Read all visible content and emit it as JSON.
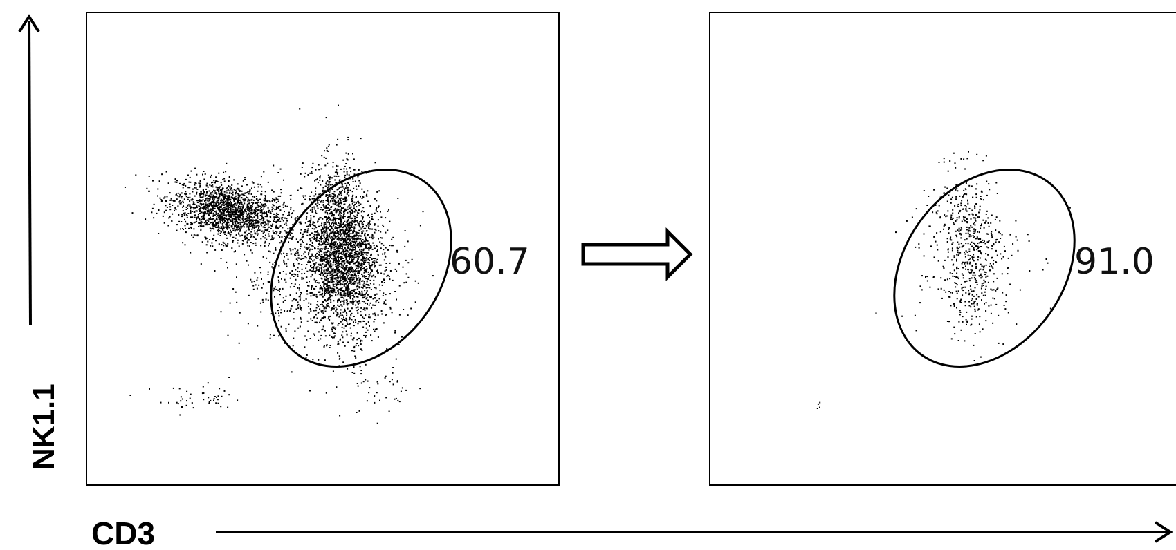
{
  "chart_data": [
    {
      "type": "scatter",
      "panel": "left",
      "xlabel": "CD3",
      "ylabel": "NK1.1",
      "gate": {
        "shape": "ellipse",
        "percentage": "60.7"
      },
      "clusters": [
        {
          "name": "",
          "cx": 0.3,
          "cy": 0.58,
          "sx": 0.06,
          "sy": 0.03,
          "rot": -12,
          "n": 1700
        },
        {
          "name": "",
          "cx": 0.54,
          "cy": 0.5,
          "sx": 0.035,
          "sy": 0.085,
          "rot": 4,
          "n": 2200
        },
        {
          "name": "",
          "cx": 0.5,
          "cy": 0.45,
          "sx": 0.085,
          "sy": 0.075,
          "rot": 0,
          "n": 900
        },
        {
          "name": "",
          "cx": 0.24,
          "cy": 0.18,
          "sx": 0.05,
          "sy": 0.015,
          "rot": 0,
          "n": 45
        },
        {
          "name": "",
          "cx": 0.62,
          "cy": 0.2,
          "sx": 0.04,
          "sy": 0.03,
          "rot": 0,
          "n": 40
        }
      ]
    },
    {
      "type": "scatter",
      "panel": "right",
      "xlabel": "CD3",
      "ylabel": "NK1.1",
      "gate": {
        "shape": "ellipse",
        "percentage": "91.0"
      },
      "clusters": [
        {
          "name": "",
          "cx": 0.55,
          "cy": 0.5,
          "sx": 0.035,
          "sy": 0.08,
          "rot": 5,
          "n": 520
        },
        {
          "name": "",
          "cx": 0.53,
          "cy": 0.48,
          "sx": 0.07,
          "sy": 0.09,
          "rot": 0,
          "n": 140
        },
        {
          "name": "",
          "cx": 0.23,
          "cy": 0.17,
          "sx": 0.004,
          "sy": 0.004,
          "rot": 0,
          "n": 4
        }
      ]
    }
  ],
  "colors": {
    "dots": "#000000",
    "axis": "#000000",
    "background": "#ffffff"
  },
  "connector": {
    "icon": "hollow-right-arrow"
  }
}
